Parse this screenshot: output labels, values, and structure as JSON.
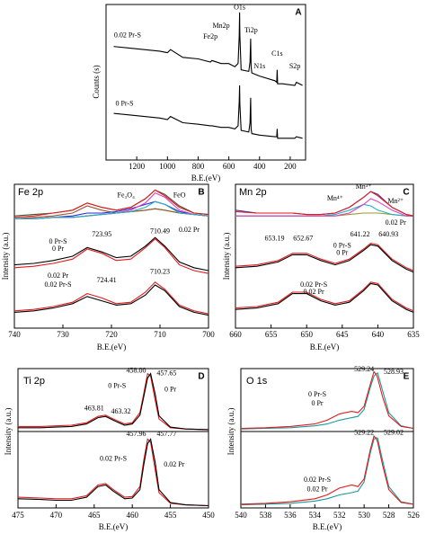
{
  "chart_data": [
    {
      "type": "line",
      "panel_label": "A",
      "xlabel": "B.E.(eV)",
      "ylabel": "Counts (s)",
      "x": [
        1350,
        1250,
        1150,
        1050,
        1000,
        980,
        900,
        800,
        720,
        710,
        650,
        600,
        560,
        540,
        532,
        530,
        528,
        520,
        470,
        462,
        458,
        455,
        450,
        400,
        300,
        288,
        285,
        282,
        250,
        170,
        160,
        120
      ],
      "xlim": [
        1400,
        100
      ],
      "xticks": [
        1200,
        1000,
        800,
        600,
        400,
        200
      ],
      "ylim": [
        0,
        100
      ],
      "series": [
        {
          "color": "#000000",
          "values": [
            73,
            72,
            71,
            70,
            69,
            71,
            66,
            65,
            63,
            64,
            62,
            62,
            60,
            62,
            80,
            95,
            80,
            58,
            57,
            63,
            78,
            60,
            56,
            54,
            51,
            50,
            58,
            49,
            49,
            48,
            50,
            48
          ]
        },
        {
          "color": "#000000",
          "values": [
            30,
            29,
            28,
            27,
            26,
            28,
            24,
            23,
            22,
            22,
            21,
            21,
            20,
            22,
            38,
            48,
            36,
            19,
            18,
            24,
            40,
            20,
            17,
            16,
            15,
            15,
            20,
            14,
            14,
            14,
            15,
            14
          ]
        }
      ],
      "annotations": [
        {
          "text": "0.02 Pr-S",
          "x": 1260,
          "y": 80
        },
        {
          "text": "0 Pr-S",
          "x": 1280,
          "y": 36
        },
        {
          "text": "O1s",
          "x": 530,
          "y": 98
        },
        {
          "text": "Ti2p",
          "x": 455,
          "y": 83
        },
        {
          "text": "Mn2p",
          "x": 650,
          "y": 86
        },
        {
          "text": "Fe2p",
          "x": 720,
          "y": 79
        },
        {
          "text": "N1s",
          "x": 400,
          "y": 60
        },
        {
          "text": "C1s",
          "x": 285,
          "y": 68
        },
        {
          "text": "S2p",
          "x": 170,
          "y": 60
        }
      ]
    },
    {
      "type": "line",
      "panel_label": "B",
      "title": "Fe 2p",
      "xlabel": "B.E.(eV)",
      "ylabel": "Intensity (a.u.)",
      "x": [
        740,
        736,
        732,
        728,
        725,
        722,
        719,
        716,
        713,
        711,
        709,
        706,
        703,
        700
      ],
      "xlim": [
        740,
        700
      ],
      "xticks": [
        740,
        730,
        720,
        710,
        700
      ],
      "ylim": [
        0,
        100
      ],
      "series": [
        {
          "color": "#4a9a3a",
          "values": [
            76,
            76,
            77,
            77,
            78,
            79,
            80,
            81,
            82,
            83,
            82,
            80,
            79,
            78
          ]
        },
        {
          "color": "#a0522d",
          "values": [
            76,
            77,
            78,
            80,
            85,
            82,
            80,
            81,
            82,
            83,
            82,
            80,
            79,
            78
          ]
        },
        {
          "color": "#2b2bd0",
          "values": [
            76,
            76,
            77,
            78,
            80,
            80,
            81,
            83,
            86,
            88,
            86,
            81,
            79,
            78
          ]
        },
        {
          "color": "#e040c0",
          "values": [
            76,
            76,
            77,
            77,
            78,
            79,
            80,
            82,
            87,
            94,
            91,
            82,
            79,
            78
          ]
        },
        {
          "color": "#20b0c0",
          "values": [
            76,
            76,
            77,
            77,
            78,
            79,
            80,
            81,
            84,
            88,
            86,
            80,
            79,
            78
          ]
        },
        {
          "color": "#3a5a35",
          "values": [
            78,
            79,
            80,
            82,
            87,
            84,
            82,
            84,
            90,
            96,
            93,
            85,
            80,
            79
          ]
        },
        {
          "color": "#e31a1c",
          "values": [
            77,
            78,
            80,
            82,
            87,
            84,
            82,
            84,
            90,
            96,
            92,
            84,
            80,
            79
          ]
        },
        {
          "color": "#e31a1c",
          "values": [
            42,
            43,
            45,
            48,
            55,
            52,
            47,
            48,
            56,
            62,
            56,
            44,
            40,
            38
          ]
        },
        {
          "color": "#000000",
          "values": [
            44,
            45,
            47,
            50,
            56,
            53,
            49,
            50,
            57,
            63,
            57,
            46,
            42,
            40
          ]
        },
        {
          "color": "#e31a1c",
          "values": [
            12,
            13,
            15,
            18,
            24,
            21,
            17,
            18,
            25,
            32,
            27,
            16,
            12,
            10
          ]
        },
        {
          "color": "#000000",
          "values": [
            11,
            12,
            14,
            17,
            22,
            19,
            16,
            17,
            23,
            30,
            26,
            15,
            11,
            9
          ]
        }
      ],
      "annotations": [
        {
          "text": "Fe₃O₄",
          "x": 717,
          "y": 92
        },
        {
          "text": "FeO",
          "x": 706,
          "y": 92
        },
        {
          "text": "0.02 Pr",
          "x": 704,
          "y": 68
        },
        {
          "text": "723.95",
          "x": 722,
          "y": 65
        },
        {
          "text": "710.49",
          "x": 710,
          "y": 67
        },
        {
          "text": "0 Pr-S",
          "x": 731,
          "y": 60
        },
        {
          "text": "0 Pr",
          "x": 731,
          "y": 55
        },
        {
          "text": "0.02 Pr",
          "x": 731,
          "y": 36
        },
        {
          "text": "0.02 Pr-S",
          "x": 731,
          "y": 30
        },
        {
          "text": "724.41",
          "x": 721,
          "y": 33
        },
        {
          "text": "710.23",
          "x": 710,
          "y": 39
        }
      ]
    },
    {
      "type": "line",
      "panel_label": "C",
      "title": "Mn 2p",
      "xlabel": "B.E.(eV)",
      "ylabel": "Intensity (a.u.)",
      "x": [
        660,
        657,
        654,
        652,
        650,
        648,
        646,
        644,
        642,
        641,
        640,
        638,
        636,
        635
      ],
      "xlim": [
        660,
        635
      ],
      "xticks": [
        660,
        655,
        650,
        645,
        640,
        635
      ],
      "ylim": [
        0,
        100
      ],
      "series": [
        {
          "color": "#9a9a30",
          "values": [
            78,
            78,
            78,
            78,
            78,
            78,
            78,
            79,
            80,
            80,
            80,
            79,
            78,
            78
          ]
        },
        {
          "color": "#20b0c0",
          "values": [
            78,
            78,
            78,
            78,
            78,
            78,
            79,
            82,
            86,
            85,
            82,
            79,
            78,
            78
          ]
        },
        {
          "color": "#e040c0",
          "values": [
            78,
            78,
            78,
            78,
            78,
            78,
            78,
            80,
            86,
            90,
            88,
            82,
            78,
            78
          ]
        },
        {
          "color": "#3030b0",
          "values": [
            82,
            80,
            80,
            80,
            79,
            79,
            80,
            84,
            91,
            95,
            93,
            84,
            79,
            78
          ]
        },
        {
          "color": "#e31a1c",
          "values": [
            81,
            80,
            80,
            80,
            79,
            79,
            80,
            84,
            91,
            95,
            92,
            84,
            79,
            78
          ]
        },
        {
          "color": "#e31a1c",
          "values": [
            43,
            44,
            47,
            52,
            52,
            48,
            45,
            48,
            55,
            59,
            58,
            48,
            42,
            40
          ]
        },
        {
          "color": "#000000",
          "values": [
            42,
            43,
            46,
            51,
            51,
            47,
            44,
            47,
            54,
            58,
            57,
            47,
            41,
            39
          ]
        },
        {
          "color": "#e31a1c",
          "values": [
            14,
            15,
            18,
            25,
            25,
            20,
            17,
            19,
            27,
            32,
            31,
            20,
            14,
            12
          ]
        },
        {
          "color": "#000000",
          "values": [
            13,
            14,
            17,
            24,
            24,
            19,
            16,
            18,
            26,
            31,
            30,
            19,
            13,
            11
          ]
        }
      ],
      "annotations": [
        {
          "text": "Mn⁴⁺",
          "x": 646,
          "y": 90
        },
        {
          "text": "Mn³⁺",
          "x": 642,
          "y": 98
        },
        {
          "text": "Mn²⁺",
          "x": 637.5,
          "y": 88
        },
        {
          "text": "0.02 Pr",
          "x": 637.5,
          "y": 73
        },
        {
          "text": "653.19",
          "x": 654.5,
          "y": 62
        },
        {
          "text": "652.67",
          "x": 650.5,
          "y": 62
        },
        {
          "text": "641.22",
          "x": 642.5,
          "y": 65
        },
        {
          "text": "640.93",
          "x": 638.5,
          "y": 65
        },
        {
          "text": "0 Pr-S",
          "x": 645,
          "y": 57
        },
        {
          "text": "0 Pr",
          "x": 645,
          "y": 52
        },
        {
          "text": "0.02 Pr-S",
          "x": 649,
          "y": 30
        },
        {
          "text": "0.02 Pr",
          "x": 649,
          "y": 25
        }
      ]
    },
    {
      "type": "line",
      "panel_label": "D",
      "title": "Ti 2p",
      "ylabel": "Intensity (a.u.)",
      "x": [
        475,
        472,
        470,
        468,
        466,
        464.5,
        463.5,
        462.5,
        461,
        460,
        459,
        458.5,
        458,
        457.6,
        457,
        456.5,
        455,
        453,
        450
      ],
      "xlim": [
        475,
        450
      ],
      "ylim": [
        0,
        100
      ],
      "series": [
        {
          "color": "#e31a1c",
          "values": [
            8,
            8,
            9,
            10,
            14,
            24,
            26,
            20,
            12,
            14,
            30,
            60,
            92,
            88,
            50,
            20,
            6,
            4,
            3
          ]
        },
        {
          "color": "#000000",
          "values": [
            6,
            6,
            7,
            8,
            12,
            22,
            24,
            18,
            10,
            12,
            26,
            55,
            85,
            92,
            60,
            25,
            7,
            4,
            3
          ]
        }
      ],
      "annotations": [
        {
          "text": "458.00",
          "x": 459.5,
          "y": 96
        },
        {
          "text": "457.65",
          "x": 455.5,
          "y": 92
        },
        {
          "text": "463.81",
          "x": 465,
          "y": 36
        },
        {
          "text": "463.32",
          "x": 461.5,
          "y": 31
        },
        {
          "text": "0 Pr-S",
          "x": 462,
          "y": 72
        },
        {
          "text": "0 Pr",
          "x": 455,
          "y": 66
        }
      ]
    },
    {
      "type": "line",
      "xlabel": "B.E.(eV)",
      "x": [
        475,
        472,
        470,
        468,
        466,
        464.5,
        463.5,
        462.5,
        461,
        460,
        459,
        458.5,
        458,
        457.6,
        457,
        456.5,
        455,
        453,
        450
      ],
      "xlim": [
        475,
        450
      ],
      "xticks": [
        475,
        470,
        465,
        460,
        455,
        450
      ],
      "ylim": [
        0,
        100
      ],
      "series": [
        {
          "color": "#e31a1c",
          "values": [
            14,
            13,
            12,
            12,
            16,
            30,
            32,
            24,
            14,
            15,
            28,
            62,
            90,
            86,
            50,
            20,
            6,
            4,
            3
          ]
        },
        {
          "color": "#000000",
          "values": [
            12,
            11,
            10,
            10,
            14,
            28,
            30,
            22,
            12,
            13,
            24,
            56,
            84,
            90,
            60,
            24,
            7,
            4,
            3
          ]
        }
      ],
      "annotations": [
        {
          "text": "457.96",
          "x": 459.5,
          "y": 96
        },
        {
          "text": "457.77",
          "x": 455.5,
          "y": 96
        },
        {
          "text": "0.02 Pr-S",
          "x": 462.5,
          "y": 64
        },
        {
          "text": "0.02 Pr",
          "x": 454.5,
          "y": 56
        }
      ]
    },
    {
      "type": "line",
      "panel_label": "E",
      "title": "O 1s",
      "ylabel": "Intensity (a.u.)",
      "x": [
        540,
        538,
        536,
        534,
        533,
        532,
        531,
        530.5,
        530,
        529.5,
        529.2,
        529,
        528.9,
        528.5,
        528,
        527,
        526
      ],
      "xlim": [
        540,
        526
      ],
      "ylim": [
        0,
        100
      ],
      "series": [
        {
          "color": "#1a9a9a",
          "values": [
            4,
            5,
            6,
            9,
            12,
            18,
            22,
            24,
            35,
            70,
            88,
            92,
            93,
            65,
            30,
            9,
            5
          ]
        },
        {
          "color": "#e31a1c",
          "values": [
            5,
            6,
            8,
            12,
            18,
            28,
            32,
            30,
            40,
            75,
            95,
            90,
            85,
            55,
            25,
            8,
            5
          ]
        }
      ],
      "annotations": [
        {
          "text": "529.24",
          "x": 530,
          "y": 98
        },
        {
          "text": "528.93",
          "x": 527.6,
          "y": 94
        },
        {
          "text": "0 Pr-S",
          "x": 533.8,
          "y": 58
        },
        {
          "text": "0 Pr",
          "x": 533.8,
          "y": 44
        }
      ]
    },
    {
      "type": "line",
      "xlabel": "B.E.(eV)",
      "x": [
        540,
        538,
        536,
        534,
        533,
        532,
        531,
        530.5,
        530,
        529.5,
        529.2,
        529,
        528.9,
        528.5,
        528,
        527,
        526
      ],
      "xlim": [
        540,
        526
      ],
      "xticks": [
        540,
        538,
        536,
        534,
        532,
        530,
        528,
        526
      ],
      "ylim": [
        0,
        100
      ],
      "series": [
        {
          "color": "#1a9a9a",
          "values": [
            4,
            5,
            6,
            9,
            12,
            17,
            20,
            22,
            34,
            72,
            90,
            92,
            91,
            62,
            28,
            8,
            5
          ]
        },
        {
          "color": "#e31a1c",
          "values": [
            5,
            6,
            8,
            12,
            17,
            26,
            30,
            28,
            38,
            76,
            94,
            90,
            86,
            56,
            24,
            7,
            5
          ]
        }
      ],
      "annotations": [
        {
          "text": "529.22",
          "x": 530,
          "y": 98
        },
        {
          "text": "529.02",
          "x": 527.6,
          "y": 98
        },
        {
          "text": "0.02 Pr-S",
          "x": 533.8,
          "y": 36
        },
        {
          "text": "0.02 Pr",
          "x": 533.8,
          "y": 24
        }
      ]
    }
  ]
}
